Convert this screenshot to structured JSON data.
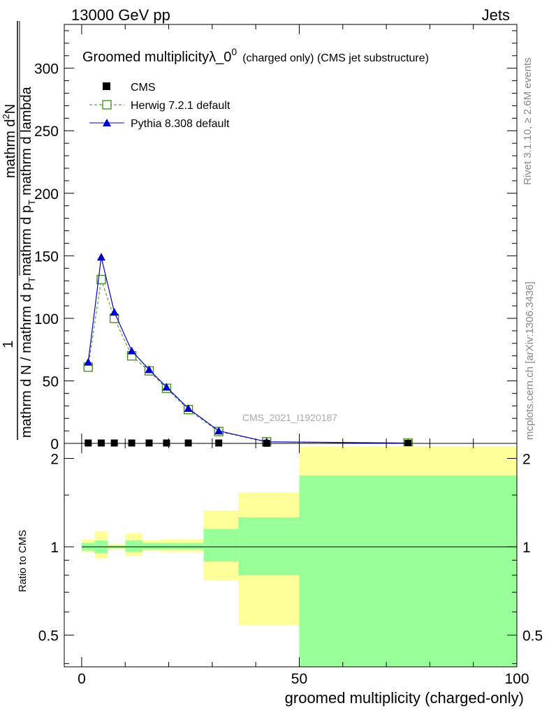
{
  "header": {
    "energy_label": "13000 GeV pp",
    "process_label": "Jets"
  },
  "side_labels": {
    "rivet": "Rivet 3.1.10, ≥ 2.6M events",
    "mcplots": "mcplots.cern.ch [arXiv:1306.3436]"
  },
  "watermark": "CMS_2021_I1920187",
  "chart_data": [
    {
      "type": "line",
      "title": "Groomed multiplicityλ_0",
      "title_superscript": "0",
      "subtitle": "(charged only) (CMS jet substructure)",
      "ylabel_parts": {
        "one": "1",
        "denominator": "mathrm d N / mathrm d p",
        "den_sub": "T",
        "numerator": "mathrm d",
        "num_sup": "2",
        "numerator2": "N",
        "denominator2": "mathrm d p",
        "den2_sub": "T",
        "denominator2_tail": "mathrm d lambda"
      },
      "xlim": [
        -4,
        100
      ],
      "ylim": [
        0,
        335
      ],
      "yticks": [
        0,
        50,
        100,
        150,
        200,
        250,
        300
      ],
      "legend": [
        {
          "name": "CMS",
          "marker": "filled-square",
          "color": "#000000"
        },
        {
          "name": "Herwig 7.2.1 default",
          "marker": "open-square",
          "color": "#3a8c10",
          "dashed": true
        },
        {
          "name": "Pythia 8.308 default",
          "marker": "filled-triangle",
          "color": "#0000cc"
        }
      ],
      "series": [
        {
          "name": "CMS",
          "x": [
            1.5,
            4.5,
            7.5,
            11.5,
            15.5,
            19.5,
            24.5,
            31.5,
            42.5,
            75
          ],
          "values": [
            0.3,
            0.3,
            0.3,
            0.3,
            0.3,
            0.3,
            0.3,
            0.3,
            0.1,
            0.02
          ]
        },
        {
          "name": "Herwig 7.2.1 default",
          "x": [
            1.5,
            4.5,
            7.5,
            11.5,
            15.5,
            19.5,
            24.5,
            31.5,
            42.5,
            75
          ],
          "values": [
            61,
            131,
            100,
            70,
            58,
            44,
            27,
            9.5,
            1.2,
            0.2
          ]
        },
        {
          "name": "Pythia 8.308 default",
          "x": [
            1.5,
            4.5,
            7.5,
            11.5,
            15.5,
            19.5,
            24.5,
            31.5,
            42.5,
            75
          ],
          "values": [
            65,
            149,
            105,
            74,
            59,
            45,
            28,
            10,
            1.3,
            0.2
          ]
        }
      ]
    },
    {
      "type": "area",
      "ylabel": "Ratio to CMS",
      "xlabel": "groomed multiplicity (charged-only)",
      "xlim": [
        -4,
        100
      ],
      "ylim": [
        0.39,
        2.25
      ],
      "xticks": [
        0,
        50,
        100
      ],
      "yticks": [
        0.5,
        1,
        2
      ],
      "reference_line": 1,
      "bands": [
        {
          "x": [
            0,
            3
          ],
          "inner": [
            0.97,
            1.03
          ],
          "outer": [
            0.96,
            1.06
          ]
        },
        {
          "x": [
            3,
            6
          ],
          "inner": [
            0.95,
            1.05
          ],
          "outer": [
            0.91,
            1.13
          ]
        },
        {
          "x": [
            6,
            10
          ],
          "inner": [
            0.99,
            1.01
          ],
          "outer": [
            0.98,
            1.02
          ]
        },
        {
          "x": [
            10,
            14
          ],
          "inner": [
            0.96,
            1.05
          ],
          "outer": [
            0.93,
            1.11
          ]
        },
        {
          "x": [
            14,
            18
          ],
          "inner": [
            0.98,
            1.03
          ],
          "outer": [
            0.97,
            1.05
          ]
        },
        {
          "x": [
            18,
            23
          ],
          "inner": [
            0.98,
            1.03
          ],
          "outer": [
            0.96,
            1.06
          ]
        },
        {
          "x": [
            23,
            28
          ],
          "inner": [
            0.98,
            1.03
          ],
          "outer": [
            0.96,
            1.06
          ]
        },
        {
          "x": [
            28,
            36
          ],
          "inner": [
            0.89,
            1.15
          ],
          "outer": [
            0.77,
            1.33
          ]
        },
        {
          "x": [
            36,
            50
          ],
          "inner": [
            0.8,
            1.26
          ],
          "outer": [
            0.54,
            1.53
          ]
        },
        {
          "x": [
            50,
            100
          ],
          "inner": [
            0.39,
            1.75
          ],
          "outer": [
            0.39,
            2.2
          ]
        }
      ]
    }
  ]
}
